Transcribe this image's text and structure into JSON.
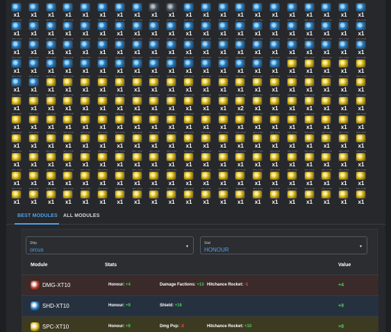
{
  "grid": {
    "count_label": "x1",
    "odd_count_label": "x2",
    "item_caption": "SPC-XT10",
    "odd_count_index": 118,
    "colors": {
      "blue": "#2a7bbd",
      "gold": "#d5b21a",
      "dark": "#4a525c"
    },
    "rows": [
      [
        "blue",
        "blue",
        "blue",
        "blue",
        "blue",
        "blue",
        "blue",
        "blue",
        "dark",
        "dark",
        "blue",
        "blue",
        "blue",
        "blue",
        "blue",
        "blue",
        "blue",
        "blue",
        "blue",
        "blue",
        "blue"
      ],
      [
        "blue",
        "blue",
        "blue",
        "blue",
        "blue",
        "blue",
        "blue",
        "blue",
        "blue",
        "blue",
        "blue",
        "blue",
        "blue",
        "blue",
        "blue",
        "blue",
        "blue",
        "blue",
        "blue",
        "blue",
        "blue"
      ],
      [
        "blue",
        "blue",
        "blue",
        "blue",
        "blue",
        "blue",
        "blue",
        "blue",
        "blue",
        "blue",
        "blue",
        "blue",
        "blue",
        "blue",
        "blue",
        "blue",
        "blue",
        "blue",
        "blue",
        "blue",
        "blue"
      ],
      [
        "blue",
        "blue",
        "blue",
        "blue",
        "blue",
        "blue",
        "blue",
        "blue",
        "blue",
        "blue",
        "blue",
        "blue",
        "blue",
        "blue",
        "blue",
        "blue",
        "gold",
        "gold",
        "gold",
        "gold",
        "gold"
      ],
      [
        "blue",
        "blue",
        "gold",
        "gold",
        "gold",
        "gold",
        "gold",
        "gold",
        "gold",
        "gold",
        "gold",
        "gold",
        "gold",
        "gold",
        "gold",
        "gold",
        "gold",
        "gold",
        "gold",
        "gold",
        "gold"
      ],
      [
        "gold",
        "gold",
        "gold",
        "gold",
        "gold",
        "gold",
        "gold",
        "gold",
        "gold",
        "gold",
        "gold",
        "gold",
        "gold",
        "gold",
        "gold",
        "gold",
        "gold",
        "gold",
        "gold",
        "gold",
        "gold"
      ],
      [
        "gold",
        "gold",
        "gold",
        "gold",
        "gold",
        "gold",
        "gold",
        "gold",
        "gold",
        "gold",
        "gold",
        "gold",
        "gold",
        "gold",
        "gold",
        "gold",
        "gold",
        "gold",
        "gold",
        "gold",
        "gold"
      ],
      [
        "gold",
        "gold",
        "gold",
        "gold",
        "gold",
        "gold",
        "gold",
        "gold",
        "gold",
        "gold",
        "gold",
        "gold",
        "gold",
        "gold",
        "gold",
        "gold",
        "gold",
        "gold",
        "gold",
        "gold",
        "gold"
      ],
      [
        "gold",
        "gold",
        "gold",
        "gold",
        "gold",
        "gold",
        "gold",
        "gold",
        "gold",
        "gold",
        "gold",
        "gold",
        "gold",
        "gold",
        "gold",
        "gold",
        "gold",
        "gold",
        "gold",
        "gold",
        "gold"
      ],
      [
        "gold",
        "gold",
        "gold",
        "gold",
        "gold",
        "gold",
        "gold",
        "gold",
        "gold",
        "gold",
        "gold",
        "gold",
        "gold",
        "gold",
        "gold",
        "gold",
        "gold",
        "gold",
        "gold",
        "gold",
        "gold"
      ],
      [
        "gold",
        "gold",
        "gold",
        "gold",
        "gold",
        "gold",
        "gold",
        "gold",
        "gold",
        "gold",
        "gold",
        "gold",
        "gold",
        "gold",
        "gold",
        "gold",
        "gold",
        "gold",
        "gold",
        "gold",
        "gold"
      ]
    ]
  },
  "tabs": {
    "best": "BEST MODULES",
    "all": "ALL MODULES"
  },
  "filters": {
    "ship_caption": "Ship",
    "ship_value": "orcus",
    "stat_caption": "Stat",
    "stat_value": "HONOUR",
    "caret": "▾"
  },
  "table": {
    "headers": {
      "module": "Module",
      "stats": "Stats",
      "value": "Value"
    },
    "rows": [
      {
        "name": "DMG-XT10",
        "bg": "#3a2a2a",
        "icon_color": "#c0392b",
        "primary_label": "Honour:",
        "primary_value": "+4",
        "extras": [
          {
            "label": "Damage Factions:",
            "value": "+13",
            "cls": "pos"
          },
          {
            "label": "Hitchance Rocket:",
            "value": "-1",
            "cls": "neg"
          }
        ],
        "value": "+4"
      },
      {
        "name": "SHD-XT10",
        "bg": "#263140",
        "icon_color": "#2a7bbd",
        "primary_label": "Honour:",
        "primary_value": "+9",
        "extras": [
          {
            "label": "Shield:",
            "value": "+16",
            "cls": "pos"
          }
        ],
        "value": "+9"
      },
      {
        "name": "SPC-XT10",
        "bg": "#3d3a22",
        "icon_color": "#d5b21a",
        "primary_label": "Honour:",
        "primary_value": "+8",
        "extras": [
          {
            "label": "Dmg Pvp:",
            "value": "-2",
            "cls": "neg"
          },
          {
            "label": "Hitchance Rocket:",
            "value": "+10",
            "cls": "pos"
          }
        ],
        "value": "+8"
      }
    ]
  }
}
